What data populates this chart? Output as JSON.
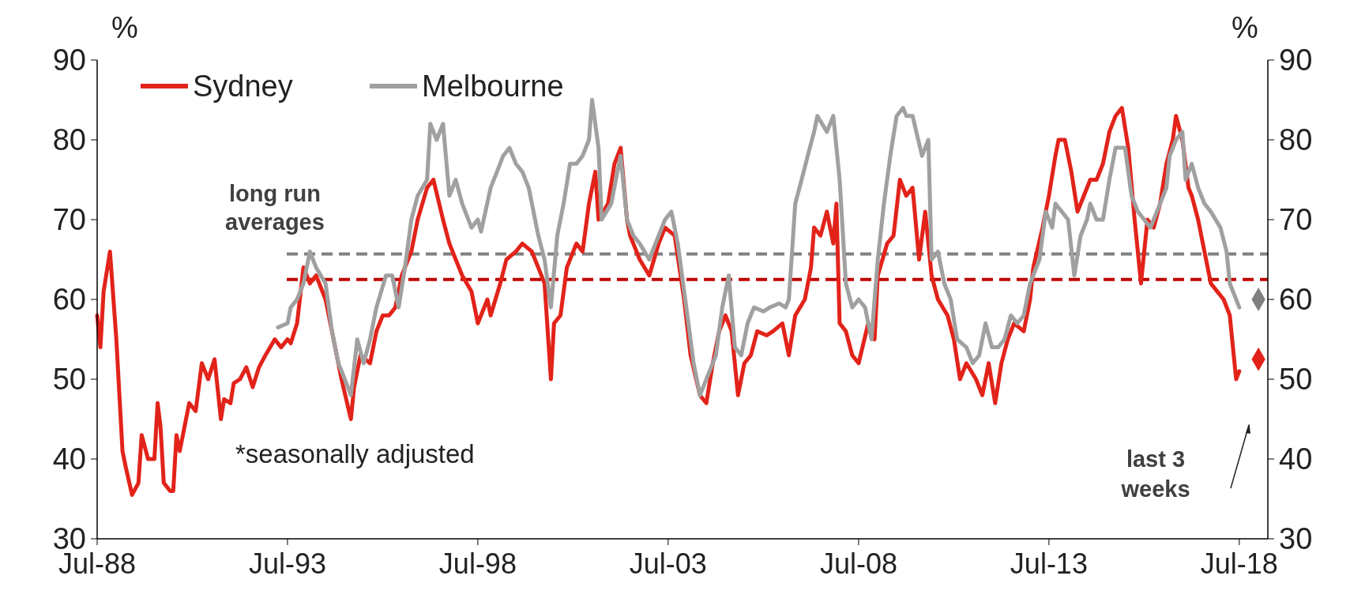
{
  "chart_data": {
    "type": "line",
    "ylabel": "%",
    "y2label": "%",
    "xlim": [
      "1988-07",
      "2019-04"
    ],
    "ylim": [
      30,
      90
    ],
    "y2lim": [
      30,
      90
    ],
    "xticks": [
      {
        "value": "1988-07",
        "label": "Jul-88"
      },
      {
        "value": "1993-07",
        "label": "Jul-93"
      },
      {
        "value": "1998-07",
        "label": "Jul-98"
      },
      {
        "value": "2003-07",
        "label": "Jul-03"
      },
      {
        "value": "2008-07",
        "label": "Jul-08"
      },
      {
        "value": "2013-07",
        "label": "Jul-13"
      },
      {
        "value": "2018-07",
        "label": "Jul-18"
      }
    ],
    "yticks": [
      30,
      40,
      50,
      60,
      70,
      80,
      90
    ],
    "y2ticks": [
      30,
      40,
      50,
      60,
      70,
      80,
      90
    ],
    "legend": "top left",
    "line_style": "solid",
    "series": [
      {
        "name": "Sydney",
        "color": "#e2231a",
        "x": [
          "1988-07",
          "1988-08",
          "1988-09",
          "1988-11",
          "1989-01",
          "1989-03",
          "1989-04",
          "1989-06",
          "1989-08",
          "1989-09",
          "1989-11",
          "1990-01",
          "1990-02",
          "1990-03",
          "1990-04",
          "1990-06",
          "1990-07",
          "1990-08",
          "1990-09",
          "1990-12",
          "1991-02",
          "1991-04",
          "1991-06",
          "1991-08",
          "1991-10",
          "1991-11",
          "1992-01",
          "1992-02",
          "1992-04",
          "1992-06",
          "1992-08",
          "1992-10",
          "1992-12",
          "1993-03",
          "1993-05",
          "1993-07",
          "1993-08",
          "1993-10",
          "1993-12",
          "1994-02",
          "1994-04",
          "1994-07",
          "1994-10",
          "1994-12",
          "1995-03",
          "1995-04",
          "1995-06",
          "1995-09",
          "1995-11",
          "1996-01",
          "1996-03",
          "1996-05",
          "1996-07",
          "1996-10",
          "1996-12",
          "1997-03",
          "1997-05",
          "1997-08",
          "1997-10",
          "1997-12",
          "1998-02",
          "1998-05",
          "1998-07",
          "1998-10",
          "1998-11",
          "1999-02",
          "1999-04",
          "1999-07",
          "1999-09",
          "1999-12",
          "2000-02",
          "2000-04",
          "2000-06",
          "2000-07",
          "2000-09",
          "2000-11",
          "2001-02",
          "2001-04",
          "2001-06",
          "2001-08",
          "2001-09",
          "2001-12",
          "2002-02",
          "2002-04",
          "2002-06",
          "2002-07",
          "2002-10",
          "2003-01",
          "2003-04",
          "2003-06",
          "2003-09",
          "2003-12",
          "2004-02",
          "2004-05",
          "2004-07",
          "2004-09",
          "2004-11",
          "2005-01",
          "2005-03",
          "2005-05",
          "2005-07",
          "2005-09",
          "2005-11",
          "2006-02",
          "2006-04",
          "2006-07",
          "2006-09",
          "2006-11",
          "2007-02",
          "2007-04",
          "2007-05",
          "2007-07",
          "2007-09",
          "2007-11",
          "2007-12",
          "2008-01",
          "2008-03",
          "2008-05",
          "2008-07",
          "2008-10",
          "2008-12",
          "2009-01",
          "2009-04",
          "2009-06",
          "2009-08",
          "2009-10",
          "2009-12",
          "2010-02",
          "2010-04",
          "2010-06",
          "2010-08",
          "2010-11",
          "2011-01",
          "2011-03",
          "2011-05",
          "2011-08",
          "2011-10",
          "2011-12",
          "2012-02",
          "2012-04",
          "2012-06",
          "2012-08",
          "2012-11",
          "2013-01",
          "2013-02",
          "2013-05",
          "2013-07",
          "2013-09",
          "2013-10",
          "2013-12",
          "2014-02",
          "2014-04",
          "2014-06",
          "2014-08",
          "2014-10",
          "2014-12",
          "2015-02",
          "2015-04",
          "2015-06",
          "2015-08",
          "2015-10",
          "2015-12",
          "2016-02",
          "2016-04",
          "2016-06",
          "2016-08",
          "2016-10",
          "2016-11",
          "2017-01",
          "2017-03",
          "2017-04",
          "2017-06",
          "2017-08",
          "2017-10",
          "2017-12",
          "2018-02",
          "2018-04",
          "2018-05",
          "2018-06",
          "2018-07"
        ],
        "values": [
          58,
          54,
          61,
          66,
          55,
          41,
          39,
          35.5,
          37,
          43,
          40,
          40,
          47,
          44,
          37,
          36,
          36,
          43,
          41,
          47,
          46,
          52,
          50,
          52.5,
          45,
          47.5,
          47,
          49.5,
          50,
          51.5,
          49,
          51.5,
          53,
          55,
          54,
          55,
          54.5,
          57,
          64,
          62,
          63,
          60,
          54,
          50,
          45,
          49,
          53,
          52,
          56,
          58,
          58,
          59,
          63,
          66,
          70,
          74,
          75,
          70,
          67,
          65,
          63,
          61,
          57,
          60,
          58,
          62,
          65,
          66,
          67,
          66,
          64,
          62,
          50,
          57,
          58,
          64,
          67,
          66,
          72,
          76,
          70,
          72,
          77,
          79,
          70,
          68,
          65,
          63,
          67,
          69,
          68,
          60,
          53,
          48,
          47,
          52,
          56,
          58,
          56,
          48,
          52,
          53,
          56,
          55.5,
          56,
          57,
          53,
          58,
          60,
          64,
          69,
          68,
          71,
          67,
          72,
          57,
          56,
          53,
          52,
          57,
          55,
          63,
          67,
          68,
          75,
          73,
          74,
          65,
          71,
          63,
          60,
          58,
          55,
          50,
          52,
          50,
          48,
          52,
          47,
          52,
          55,
          57,
          56,
          60,
          64,
          69,
          73,
          78,
          80,
          80,
          76,
          71,
          73,
          75,
          75,
          77,
          81,
          83,
          84,
          79,
          70,
          62,
          70,
          69,
          72,
          77,
          80,
          83,
          80,
          74,
          73,
          70,
          66,
          62,
          61,
          60,
          58,
          54,
          50,
          51
        ]
      },
      {
        "name": "Melbourne",
        "color": "#a0a0a0",
        "x": [
          "1993-04",
          "1993-07",
          "1993-08",
          "1993-10",
          "1993-12",
          "1994-02",
          "1994-04",
          "1994-07",
          "1994-09",
          "1994-11",
          "1995-01",
          "1995-03",
          "1995-05",
          "1995-07",
          "1995-09",
          "1995-11",
          "1996-02",
          "1996-04",
          "1996-06",
          "1996-08",
          "1996-10",
          "1996-12",
          "1997-03",
          "1997-04",
          "1997-06",
          "1997-08",
          "1997-10",
          "1997-12",
          "1998-02",
          "1998-05",
          "1998-07",
          "1998-08",
          "1998-11",
          "1999-01",
          "1999-03",
          "1999-05",
          "1999-07",
          "1999-09",
          "1999-11",
          "2000-02",
          "2000-04",
          "2000-06",
          "2000-08",
          "2000-10",
          "2000-12",
          "2001-02",
          "2001-04",
          "2001-06",
          "2001-07",
          "2001-09",
          "2001-10",
          "2002-01",
          "2002-03",
          "2002-04",
          "2002-06",
          "2002-08",
          "2002-10",
          "2003-01",
          "2003-03",
          "2003-06",
          "2003-08",
          "2003-10",
          "2004-01",
          "2004-03",
          "2004-05",
          "2004-08",
          "2004-10",
          "2004-12",
          "2005-02",
          "2005-04",
          "2005-06",
          "2005-08",
          "2005-10",
          "2006-01",
          "2006-03",
          "2006-06",
          "2006-08",
          "2006-09",
          "2006-11",
          "2007-01",
          "2007-03",
          "2007-05",
          "2007-06",
          "2007-09",
          "2007-11",
          "2008-01",
          "2008-03",
          "2008-05",
          "2008-07",
          "2008-09",
          "2008-11",
          "2009-01",
          "2009-03",
          "2009-05",
          "2009-07",
          "2009-09",
          "2009-10",
          "2009-12",
          "2010-03",
          "2010-05",
          "2010-06",
          "2010-08",
          "2010-10",
          "2010-12",
          "2011-02",
          "2011-05",
          "2011-07",
          "2011-09",
          "2011-11",
          "2012-01",
          "2012-03",
          "2012-05",
          "2012-07",
          "2012-09",
          "2012-11",
          "2013-01",
          "2013-04",
          "2013-06",
          "2013-08",
          "2013-09",
          "2013-11",
          "2014-01",
          "2014-03",
          "2014-05",
          "2014-07",
          "2014-08",
          "2014-10",
          "2014-12",
          "2015-02",
          "2015-04",
          "2015-07",
          "2015-09",
          "2015-11",
          "2016-01",
          "2016-03",
          "2016-06",
          "2016-08",
          "2016-09",
          "2016-11",
          "2017-01",
          "2017-02",
          "2017-04",
          "2017-06",
          "2017-08",
          "2017-10",
          "2018-01",
          "2018-03",
          "2018-04",
          "2018-06",
          "2018-07"
        ],
        "values": [
          56.5,
          57,
          59,
          60,
          62,
          66,
          64,
          62,
          56,
          52,
          50,
          48,
          55,
          52,
          55,
          59,
          63,
          63,
          59,
          64,
          70,
          73,
          75,
          82,
          80,
          82,
          73,
          75,
          72,
          69,
          70,
          68.5,
          74,
          76,
          78,
          79,
          77,
          76,
          74,
          68,
          65,
          59,
          68,
          72,
          77,
          77,
          78,
          80,
          85,
          79,
          70,
          72,
          76,
          78,
          70,
          68,
          67,
          65,
          67,
          70,
          71,
          67,
          58,
          52,
          48,
          51,
          53,
          59,
          63,
          54,
          53,
          57,
          59,
          58.5,
          59,
          59.5,
          59,
          60,
          72,
          75,
          78,
          81,
          83,
          81,
          83,
          75,
          62,
          59,
          60,
          59,
          55,
          65,
          72,
          78,
          83,
          84,
          83,
          83,
          78,
          80,
          65,
          66,
          62,
          60,
          55,
          54,
          52,
          53,
          57,
          54,
          54,
          55,
          58,
          57,
          58,
          62,
          65,
          71,
          69,
          72,
          71,
          70,
          63,
          68,
          70,
          72,
          70,
          70,
          75,
          79,
          79,
          73,
          71,
          70,
          69,
          72,
          74,
          78,
          80,
          81,
          75,
          77,
          74,
          72,
          71,
          69,
          66,
          62,
          60,
          59
        ]
      },
      {
        "type": "scatter",
        "marker": "diamond",
        "color": "#808080",
        "x": [
          "2019-01"
        ],
        "values": [
          60
        ]
      },
      {
        "type": "scatter",
        "marker": "diamond",
        "color": "#e2231a",
        "x": [
          "2019-01"
        ],
        "values": [
          52.5
        ]
      }
    ],
    "ref_lines": [
      {
        "axis": "y",
        "value": 65.7,
        "color": "#808080",
        "line_style": "dashed"
      },
      {
        "axis": "y",
        "value": 62.5,
        "color": "#c00000",
        "line_style": "dashed"
      }
    ],
    "annotations": [
      "long run averages",
      "*seasonally adjusted",
      "last 3 weeks"
    ]
  }
}
